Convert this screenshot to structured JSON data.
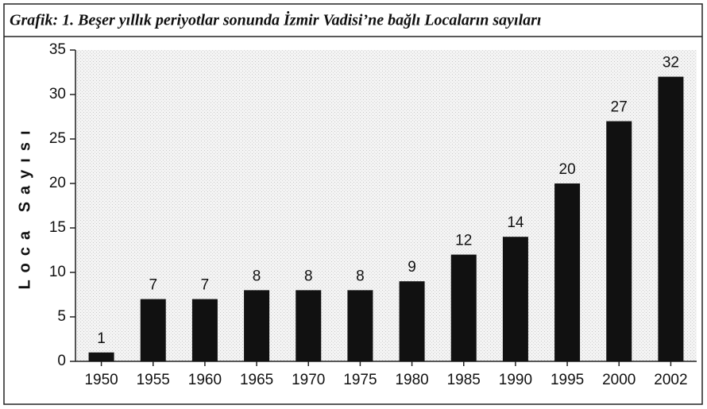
{
  "chart_data": {
    "type": "bar",
    "title": "Grafik: 1. Beşer yıllık periyotlar sonunda İzmir Vadisi’ne bağlı Locaların sayıları",
    "y_label": "Loca Sayısı",
    "categories": [
      "1950",
      "1955",
      "1960",
      "1965",
      "1970",
      "1975",
      "1980",
      "1985",
      "1990",
      "1995",
      "2000",
      "2002"
    ],
    "values": [
      1,
      7,
      7,
      8,
      8,
      8,
      9,
      12,
      14,
      20,
      27,
      32
    ],
    "color": "#111111",
    "ylim": [
      0,
      35
    ],
    "yticks": [
      0,
      5,
      10,
      15,
      20,
      25,
      30,
      35
    ],
    "grid": false
  }
}
